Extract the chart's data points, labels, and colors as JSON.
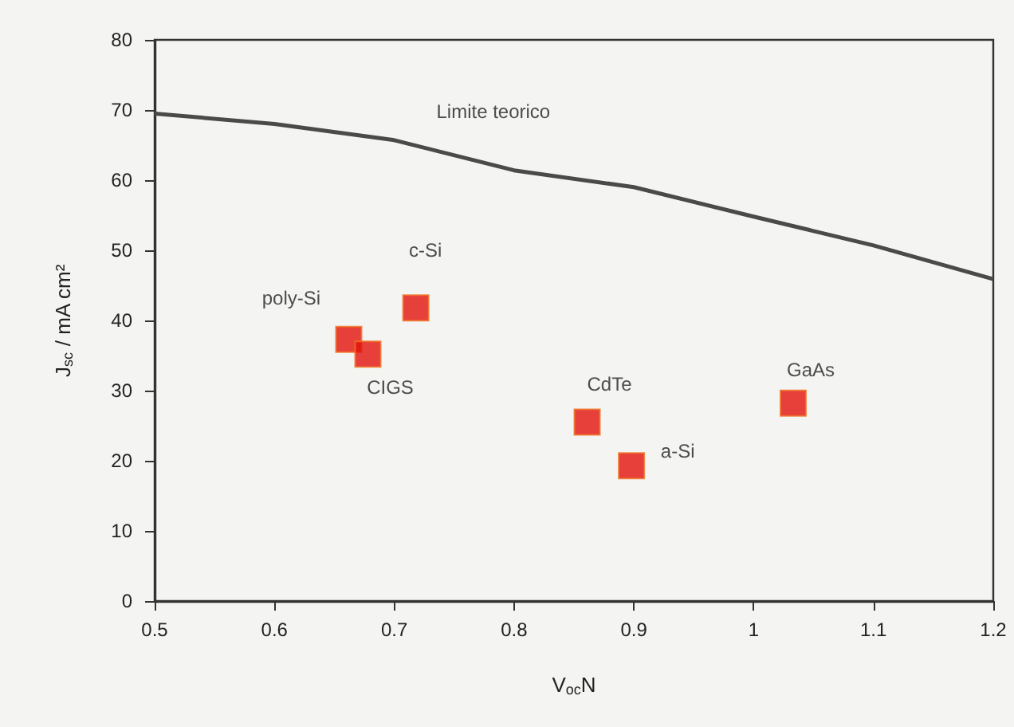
{
  "chart_data": {
    "type": "scatter",
    "xlabel": "V$_{oc}$N",
    "ylabel": "J$_{sc}$ / mA cm²",
    "xlim": [
      0.5,
      1.2
    ],
    "xticks": [
      0.5,
      0.6,
      0.7,
      0.8,
      0.9,
      1,
      1.1,
      1.2
    ],
    "ylim": [
      0,
      80
    ],
    "yticks": [
      0,
      10,
      20,
      30,
      40,
      50,
      60,
      70,
      80
    ],
    "grid": false,
    "marker": "square",
    "series": [
      {
        "color": "#e3120b",
        "x": [
          0.662,
          0.678,
          0.718,
          0.861,
          0.898,
          1.033
        ],
        "values": [
          37.3,
          35.2,
          41.8,
          25.5,
          19.3,
          28.2
        ]
      },
      {
        "type": "line",
        "color": "#4a4a4a",
        "marker": "none",
        "line_style": "solid",
        "x": [
          0.5,
          0.6,
          0.7,
          0.8,
          0.9,
          1.0,
          1.1,
          1.2
        ],
        "values": [
          69.5,
          68,
          65.7,
          61.4,
          59,
          54.8,
          50.7,
          45.9
        ]
      }
    ],
    "annotations": [
      {
        "text": "Limite teorico",
        "x": 0.8,
        "y": 61.4
      },
      {
        "text": "poly-Si",
        "x": 0.662,
        "y": 37.3
      },
      {
        "text": "c-Si",
        "x": 0.718,
        "y": 41.8
      },
      {
        "text": "CIGS",
        "x": 0.678,
        "y": 35.2
      },
      {
        "text": "CdTe",
        "x": 0.861,
        "y": 25.5
      },
      {
        "text": "a-Si",
        "x": 0.898,
        "y": 19.3
      },
      {
        "text": "GaAs",
        "x": 1.033,
        "y": 28.2
      }
    ]
  }
}
